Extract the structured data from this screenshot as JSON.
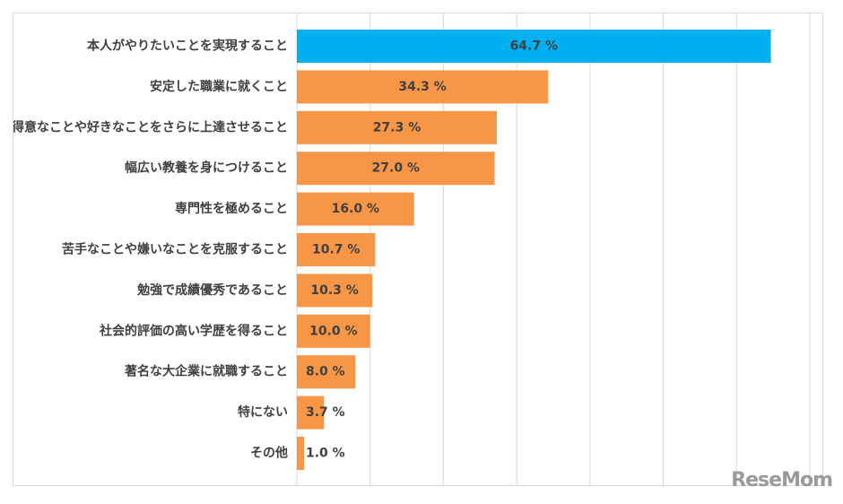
{
  "chart_data": {
    "type": "bar",
    "orientation": "horizontal",
    "categories": [
      "本人がやりたいことを実現すること",
      "安定した職業に就くこと",
      "得意なことや好きなことをさらに上達させること",
      "幅広い教養を身につけること",
      "専門性を極めること",
      "苦手なことや嫌いなことを克服すること",
      "勉強で成績優秀であること",
      "社会的評価の高い学歴を得ること",
      "著名な大企業に就職すること",
      "特にない",
      "その他"
    ],
    "values": [
      64.7,
      34.3,
      27.3,
      27.0,
      16.0,
      10.7,
      10.3,
      10.0,
      8.0,
      3.7,
      1.0
    ],
    "value_labels": [
      "64.7 %",
      "34.3 %",
      "27.3 %",
      "27.0 %",
      "16.0 %",
      "10.7 %",
      "10.3 %",
      "10.0 %",
      "8.0 %",
      "3.7 %",
      "1.0 %"
    ],
    "highlight_index": 0,
    "colors": {
      "highlight": "#00b0f0",
      "default": "#f79646"
    },
    "xlim": [
      0,
      70
    ],
    "grid_step": 10,
    "grid": true,
    "legend": false
  },
  "watermark": "ReseMom"
}
